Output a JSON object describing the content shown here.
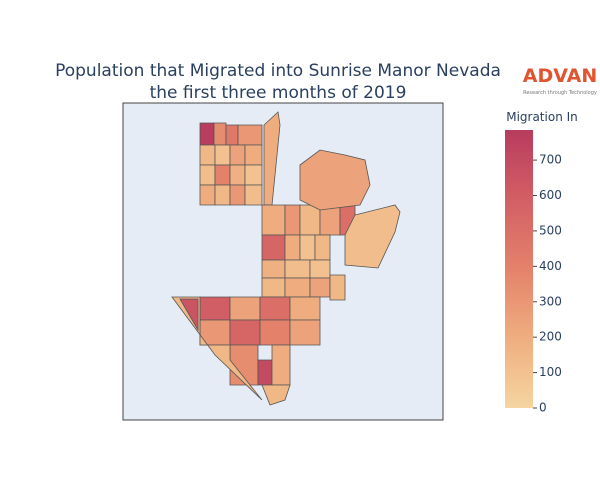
{
  "chart_data": {
    "type": "choropleth",
    "title": [
      "Population that Migrated into Sunrise Manor Nevada",
      "the first three months of 2019"
    ],
    "logo": {
      "name": "ADVAN",
      "tagline": "Research through Technology"
    },
    "colorbar_title": "Migration In",
    "zlim": [
      0,
      785
    ],
    "zticks": [
      0,
      100,
      200,
      300,
      400,
      500,
      600,
      700
    ],
    "colorscale": [
      "#f5d5a0",
      "#efae7f",
      "#e4826b",
      "#d35f65",
      "#b73c5e"
    ],
    "background": "#e5ecf6",
    "values": [
      780,
      350,
      450,
      300,
      150,
      100,
      250,
      200,
      120,
      400,
      180,
      90,
      200,
      150,
      300,
      120,
      200,
      200,
      300,
      150,
      250,
      500,
      550,
      200,
      100,
      150,
      180,
      120,
      100,
      150,
      200,
      250,
      150,
      600,
      250,
      500,
      200,
      300,
      550,
      400,
      250,
      350,
      700,
      200,
      150,
      250,
      120,
      150,
      650
    ]
  }
}
